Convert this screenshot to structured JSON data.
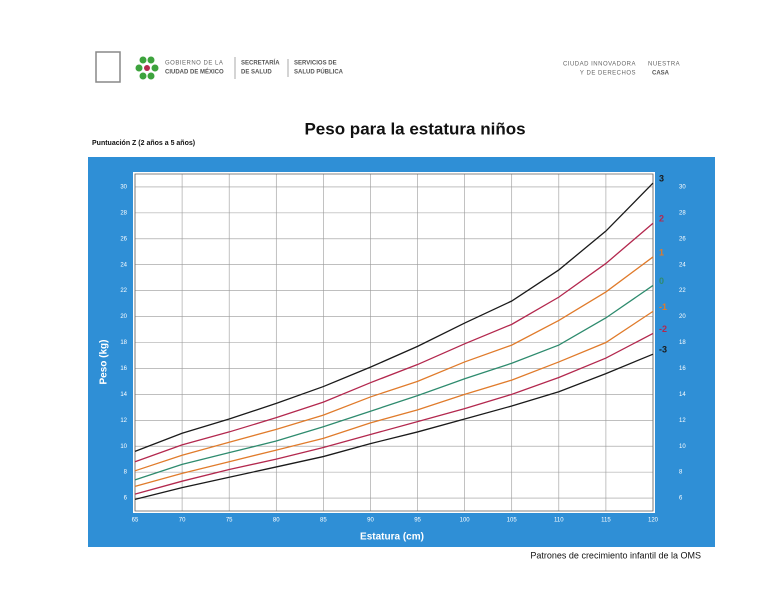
{
  "header": {
    "gov_line1": "GOBIERNO DE LA",
    "gov_line2": "CIUDAD DE MÉXICO",
    "sec_line1": "SECRETARÍA",
    "sec_line2": "DE SALUD",
    "serv_line1": "SERVICIOS DE",
    "serv_line2": "SALUD PÚBLICA",
    "slogan_line1": "CIUDAD INNOVADORA",
    "slogan_line2": "Y DE DERECHOS",
    "casa_line1": "NUESTRA",
    "casa_line2": "CASA"
  },
  "chart_data": {
    "type": "line",
    "title": "Peso para la estatura niños",
    "subtitle": "Puntuación Z (2 años a 5 años)",
    "x_label": "Estatura (cm)",
    "y_label": "Peso (kg)",
    "source": "Patrones de crecimiento infantil de la OMS",
    "x": [
      65,
      70,
      75,
      80,
      85,
      90,
      95,
      100,
      105,
      110,
      115,
      120
    ],
    "xlim": [
      65,
      120
    ],
    "xticks": [
      65,
      70,
      75,
      80,
      85,
      90,
      95,
      100,
      105,
      110,
      115,
      120
    ],
    "ylim": [
      5,
      31
    ],
    "yticks": [
      6,
      8,
      10,
      12,
      14,
      16,
      18,
      20,
      22,
      24,
      26,
      28,
      30
    ],
    "grid": true,
    "series": [
      {
        "name": "3",
        "color": "#1a1a1a",
        "values": [
          9.6,
          11.0,
          12.1,
          13.3,
          14.6,
          16.1,
          17.7,
          19.5,
          21.2,
          23.6,
          26.6,
          30.3
        ]
      },
      {
        "name": "2",
        "color": "#b3284e",
        "values": [
          8.8,
          10.1,
          11.1,
          12.2,
          13.4,
          14.9,
          16.3,
          17.9,
          19.4,
          21.5,
          24.1,
          27.2
        ]
      },
      {
        "name": "1",
        "color": "#e07b2b",
        "values": [
          8.1,
          9.3,
          10.3,
          11.3,
          12.4,
          13.8,
          15.0,
          16.5,
          17.8,
          19.7,
          21.9,
          24.6
        ]
      },
      {
        "name": "0",
        "color": "#2e8b6e",
        "values": [
          7.4,
          8.6,
          9.5,
          10.4,
          11.5,
          12.7,
          13.9,
          15.2,
          16.4,
          17.8,
          19.9,
          22.4
        ]
      },
      {
        "name": "-1",
        "color": "#e07b2b",
        "values": [
          6.9,
          7.9,
          8.8,
          9.7,
          10.6,
          11.8,
          12.8,
          14.0,
          15.1,
          16.5,
          18.0,
          20.4
        ]
      },
      {
        "name": "-2",
        "color": "#b3284e",
        "values": [
          6.3,
          7.3,
          8.2,
          9.0,
          9.9,
          10.9,
          11.9,
          12.9,
          14.0,
          15.3,
          16.8,
          18.7
        ]
      },
      {
        "name": "-3",
        "color": "#1a1a1a",
        "values": [
          5.9,
          6.8,
          7.6,
          8.4,
          9.2,
          10.2,
          11.1,
          12.1,
          13.1,
          14.2,
          15.6,
          17.1
        ]
      }
    ]
  }
}
